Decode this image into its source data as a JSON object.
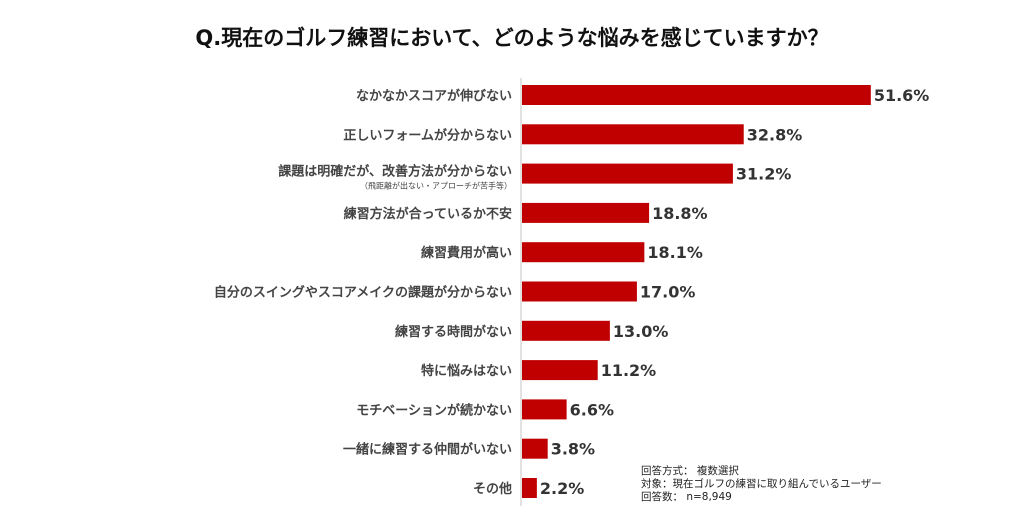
{
  "chart_data": {
    "type": "bar",
    "orientation": "horizontal",
    "title": "Q.現在のゴルフ練習において、どのような悩みを感じていますか？",
    "categories": [
      "なかなかスコアが伸びない",
      "正しいフォームが分からない",
      "課題は明確だが、改善方法が分からない",
      "練習方法が合っているか不安",
      "練習費用が高い",
      "自分のスイングやスコアメイクの課題が分からない",
      "練習する時間がない",
      "特に悩みはない",
      "モチベーションが続かない",
      "一緒に練習する仲間がいない",
      "その他"
    ],
    "category_subnotes": {
      "2": "（飛距離が出ない・アプローチが苦手等）"
    },
    "values": [
      51.6,
      32.8,
      31.2,
      18.8,
      18.1,
      17.0,
      13.0,
      11.2,
      6.6,
      3.8,
      2.2
    ],
    "value_labels": [
      "51.6%",
      "32.8%",
      "31.2%",
      "18.8%",
      "18.1%",
      "17.0%",
      "13.0%",
      "11.2%",
      "6.6%",
      "3.8%",
      "2.2%"
    ],
    "unit": "%",
    "grid": false,
    "bar_color": "#c00000"
  },
  "notes": [
    "回答方式： 複数選択",
    "対象：現在ゴルフの練習に取り組んでいるユーザー",
    "回答数： n=8,949"
  ]
}
